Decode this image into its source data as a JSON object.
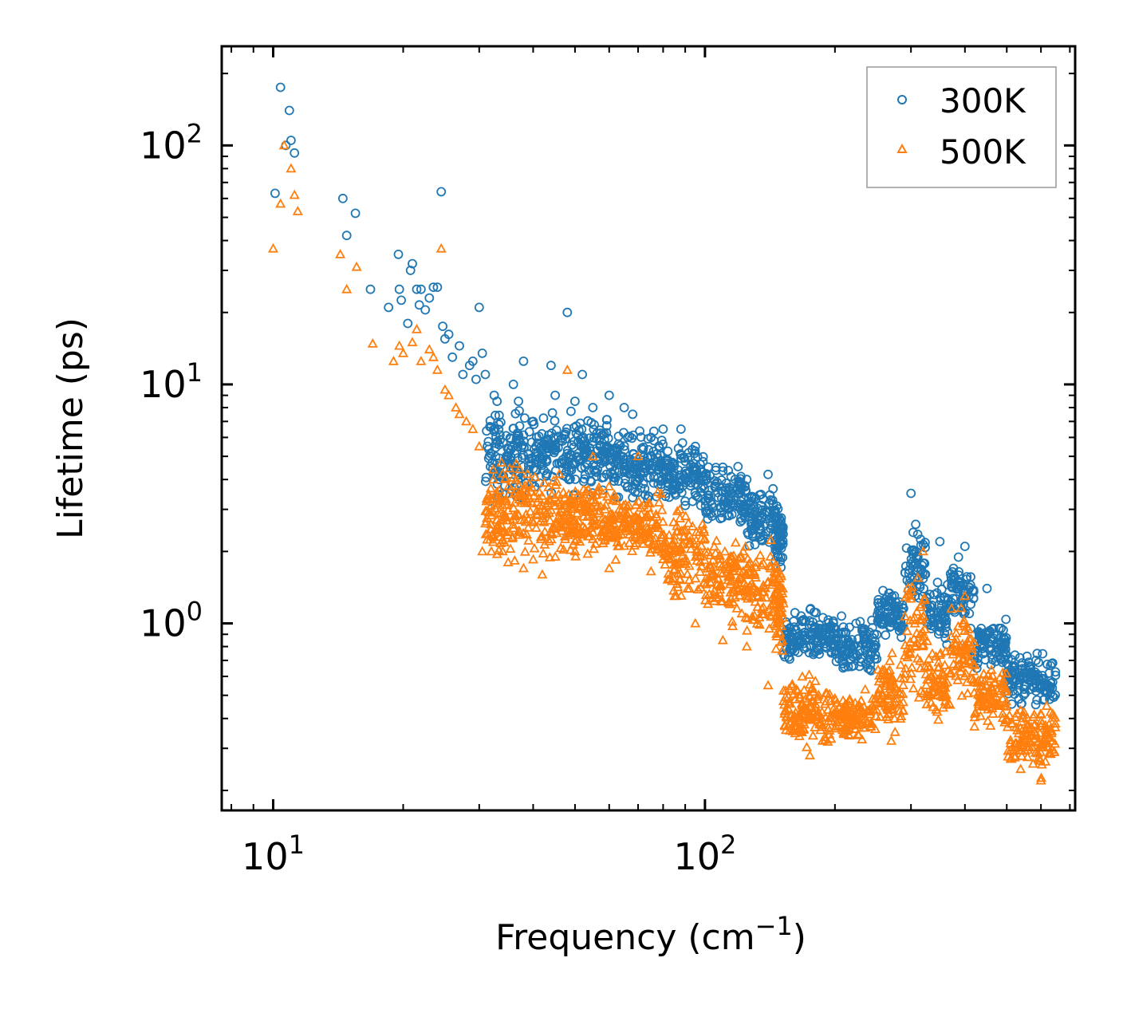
{
  "chart_data": {
    "type": "scatter",
    "xscale": "log",
    "yscale": "log",
    "xlim": [
      7.6,
      720
    ],
    "ylim": [
      0.165,
      260
    ],
    "xlabel": {
      "base": "Frequency (cm",
      "sup": "−1",
      "tail": ")"
    },
    "ylabel": "Lifetime (ps)",
    "xticks": [
      {
        "value": 10,
        "base": "10",
        "exp": "1"
      },
      {
        "value": 100,
        "base": "10",
        "exp": "2"
      }
    ],
    "yticks": [
      {
        "value": 1,
        "base": "10",
        "exp": "0"
      },
      {
        "value": 10,
        "base": "10",
        "exp": "1"
      },
      {
        "value": 100,
        "base": "10",
        "exp": "2"
      }
    ],
    "legend_position": "top-right",
    "series": [
      {
        "name": "300K",
        "marker": "circle",
        "color": "#1f77b4",
        "points": [
          [
            10.1,
            63
          ],
          [
            10.4,
            175
          ],
          [
            10.7,
            100
          ],
          [
            10.9,
            140
          ],
          [
            11.0,
            105
          ],
          [
            11.2,
            93
          ],
          [
            14.5,
            60
          ],
          [
            14.8,
            42
          ],
          [
            15.5,
            52
          ],
          [
            16.8,
            25
          ],
          [
            18.5,
            21
          ],
          [
            19.5,
            35
          ],
          [
            19.6,
            25
          ],
          [
            19.8,
            22.5
          ],
          [
            20.5,
            18
          ],
          [
            20.8,
            30
          ],
          [
            21.0,
            32
          ],
          [
            21.5,
            25
          ],
          [
            21.8,
            21.5
          ],
          [
            22.0,
            25
          ],
          [
            22.5,
            20.5
          ],
          [
            23.0,
            23
          ],
          [
            23.5,
            25.5
          ],
          [
            24.0,
            25.5
          ],
          [
            24.5,
            64
          ],
          [
            24.7,
            17.5
          ],
          [
            25.0,
            15.5
          ],
          [
            25.5,
            16.2
          ],
          [
            26.0,
            13
          ],
          [
            27.0,
            14.5
          ],
          [
            27.5,
            11
          ],
          [
            28.5,
            12
          ],
          [
            29.0,
            12.5
          ],
          [
            29.5,
            10.5
          ],
          [
            30.0,
            21
          ],
          [
            30.5,
            13.5
          ],
          [
            31.0,
            11
          ],
          [
            32.5,
            9
          ],
          [
            33.0,
            8.5
          ],
          [
            34.0,
            3.5
          ],
          [
            36.0,
            10
          ],
          [
            37.0,
            8.5
          ],
          [
            38.0,
            12.5
          ],
          [
            40.0,
            7
          ],
          [
            44.0,
            12
          ],
          [
            45.0,
            9
          ],
          [
            48.0,
            20
          ],
          [
            50.0,
            8.5
          ],
          [
            52.0,
            11
          ],
          [
            55.0,
            8
          ],
          [
            60.0,
            9
          ],
          [
            65.0,
            8
          ],
          [
            68.0,
            7.5
          ],
          [
            75.0,
            6
          ],
          [
            80.0,
            6.5
          ],
          [
            88.0,
            6.5
          ],
          [
            95.0,
            5.5
          ],
          [
            110.0,
            4.5
          ],
          [
            125.0,
            4
          ],
          [
            140.0,
            4.2
          ],
          [
            300.0,
            3.5
          ],
          [
            350.0,
            2.2
          ],
          [
            400.0,
            2.1
          ],
          [
            450.0,
            1.4
          ]
        ],
        "bands": [
          {
            "x": [
              31,
              40
            ],
            "y": [
              2.8,
              9
            ]
          },
          {
            "x": [
              40,
              60
            ],
            "y": [
              3.2,
              8.5
            ]
          },
          {
            "x": [
              60,
              80
            ],
            "y": [
              3.0,
              7
            ]
          },
          {
            "x": [
              80,
              100
            ],
            "y": [
              2.8,
              6
            ]
          },
          {
            "x": [
              100,
              125
            ],
            "y": [
              2.2,
              5
            ]
          },
          {
            "x": [
              125,
              145
            ],
            "y": [
              1.8,
              4.2
            ]
          },
          {
            "x": [
              145,
              152
            ],
            "y": [
              1.5,
              3.5
            ]
          },
          {
            "x": [
              152,
              200
            ],
            "y": [
              0.65,
              1.2
            ]
          },
          {
            "x": [
              200,
              250
            ],
            "y": [
              0.55,
              1.2
            ]
          },
          {
            "x": [
              250,
              290
            ],
            "y": [
              0.8,
              1.5
            ]
          },
          {
            "x": [
              290,
              325
            ],
            "y": [
              1.0,
              3.0
            ]
          },
          {
            "x": [
              325,
              370
            ],
            "y": [
              0.75,
              1.6
            ]
          },
          {
            "x": [
              370,
              420
            ],
            "y": [
              0.9,
              2.1
            ]
          },
          {
            "x": [
              420,
              500
            ],
            "y": [
              0.6,
              1.1
            ]
          },
          {
            "x": [
              500,
              650
            ],
            "y": [
              0.42,
              0.8
            ]
          }
        ]
      },
      {
        "name": "500K",
        "marker": "triangle",
        "color": "#ff7f0e",
        "points": [
          [
            10.0,
            37
          ],
          [
            10.4,
            57
          ],
          [
            10.6,
            100
          ],
          [
            11.0,
            80
          ],
          [
            11.2,
            62
          ],
          [
            11.4,
            53
          ],
          [
            14.3,
            35
          ],
          [
            14.8,
            25
          ],
          [
            15.6,
            31
          ],
          [
            17.0,
            14.8
          ],
          [
            19.0,
            12.5
          ],
          [
            19.6,
            14.5
          ],
          [
            20.0,
            13.5
          ],
          [
            21.0,
            15
          ],
          [
            21.5,
            17
          ],
          [
            22.0,
            12.5
          ],
          [
            23.0,
            14
          ],
          [
            23.5,
            13
          ],
          [
            24.0,
            11.5
          ],
          [
            24.5,
            37
          ],
          [
            25.0,
            9.5
          ],
          [
            25.5,
            9
          ],
          [
            26.5,
            8
          ],
          [
            27.0,
            7.5
          ],
          [
            28.0,
            7
          ],
          [
            29.0,
            6.5
          ],
          [
            30.0,
            5.5
          ],
          [
            30.5,
            2.0
          ],
          [
            32.0,
            2.0
          ],
          [
            33.0,
            1.95
          ],
          [
            34.0,
            2.0
          ],
          [
            35.0,
            1.8
          ],
          [
            36.0,
            2.5
          ],
          [
            38.0,
            1.7
          ],
          [
            40.0,
            1.85
          ],
          [
            42.0,
            1.6
          ],
          [
            45.0,
            1.9
          ],
          [
            48.0,
            11.5
          ],
          [
            50.0,
            2.0
          ],
          [
            55.0,
            5
          ],
          [
            60.0,
            1.7
          ],
          [
            70.0,
            5
          ],
          [
            75.0,
            1.65
          ],
          [
            85.0,
            1.3
          ],
          [
            95.0,
            1.0
          ],
          [
            110.0,
            0.85
          ],
          [
            125.0,
            0.8
          ],
          [
            140.0,
            0.55
          ],
          [
            175.0,
            0.28
          ],
          [
            320.0,
            2.0
          ],
          [
            400.0,
            1.3
          ],
          [
            600.0,
            0.22
          ]
        ],
        "bands": [
          {
            "x": [
              31,
              40
            ],
            "y": [
              1.7,
              5.5
            ]
          },
          {
            "x": [
              40,
              60
            ],
            "y": [
              1.7,
              4.5
            ]
          },
          {
            "x": [
              60,
              80
            ],
            "y": [
              1.7,
              3.8
            ]
          },
          {
            "x": [
              80,
              100
            ],
            "y": [
              1.1,
              3.5
            ]
          },
          {
            "x": [
              100,
              125
            ],
            "y": [
              0.9,
              2.7
            ]
          },
          {
            "x": [
              125,
              145
            ],
            "y": [
              0.75,
              2.5
            ]
          },
          {
            "x": [
              145,
              152
            ],
            "y": [
              0.6,
              2.2
            ]
          },
          {
            "x": [
              152,
              200
            ],
            "y": [
              0.28,
              0.65
            ]
          },
          {
            "x": [
              200,
              250
            ],
            "y": [
              0.3,
              0.55
            ]
          },
          {
            "x": [
              250,
              290
            ],
            "y": [
              0.3,
              0.85
            ]
          },
          {
            "x": [
              290,
              325
            ],
            "y": [
              0.4,
              2.0
            ]
          },
          {
            "x": [
              325,
              370
            ],
            "y": [
              0.35,
              0.9
            ]
          },
          {
            "x": [
              370,
              420
            ],
            "y": [
              0.45,
              1.3
            ]
          },
          {
            "x": [
              420,
              500
            ],
            "y": [
              0.35,
              0.7
            ]
          },
          {
            "x": [
              500,
              650
            ],
            "y": [
              0.22,
              0.5
            ]
          }
        ]
      }
    ]
  }
}
